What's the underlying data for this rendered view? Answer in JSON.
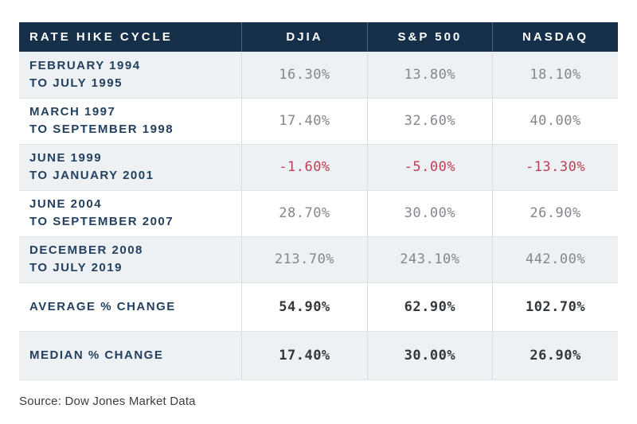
{
  "chart_data": {
    "type": "table",
    "columns": [
      "RATE HIKE CYCLE",
      "DJIA",
      "S&P 500",
      "NASDAQ"
    ],
    "rows": [
      {
        "period": [
          "FEBRUARY 1994",
          "TO JULY 1995"
        ],
        "values": [
          "16.30%",
          "13.80%",
          "18.10%"
        ],
        "negative": false
      },
      {
        "period": [
          "MARCH 1997",
          "TO SEPTEMBER 1998"
        ],
        "values": [
          "17.40%",
          "32.60%",
          "40.00%"
        ],
        "negative": false
      },
      {
        "period": [
          "JUNE 1999",
          "TO JANUARY 2001"
        ],
        "values": [
          "-1.60%",
          "-5.00%",
          "-13.30%"
        ],
        "negative": true
      },
      {
        "period": [
          "JUNE 2004",
          "TO SEPTEMBER 2007"
        ],
        "values": [
          "28.70%",
          "30.00%",
          "26.90%"
        ],
        "negative": false
      },
      {
        "period": [
          "DECEMBER 2008",
          "TO JULY 2019"
        ],
        "values": [
          "213.70%",
          "243.10%",
          "442.00%"
        ],
        "negative": false
      }
    ],
    "summary": [
      {
        "label": "AVERAGE % CHANGE",
        "values": [
          "54.90%",
          "62.90%",
          "102.70%"
        ]
      },
      {
        "label": "MEDIAN % CHANGE",
        "values": [
          "17.40%",
          "30.00%",
          "26.90%"
        ]
      }
    ],
    "source": "Source: Dow Jones Market Data"
  },
  "colors": {
    "header_bg": "#17304a",
    "header_text": "#ffffff",
    "row_alt_bg": "#eef1f4",
    "row_bg": "#ffffff",
    "label_navy": "#22405f",
    "value_gray": "#82878d",
    "negative_red": "#bb3e55",
    "summary_value": "#33383d",
    "divider_light": "#d9dde2",
    "divider_header": "#51637a"
  }
}
